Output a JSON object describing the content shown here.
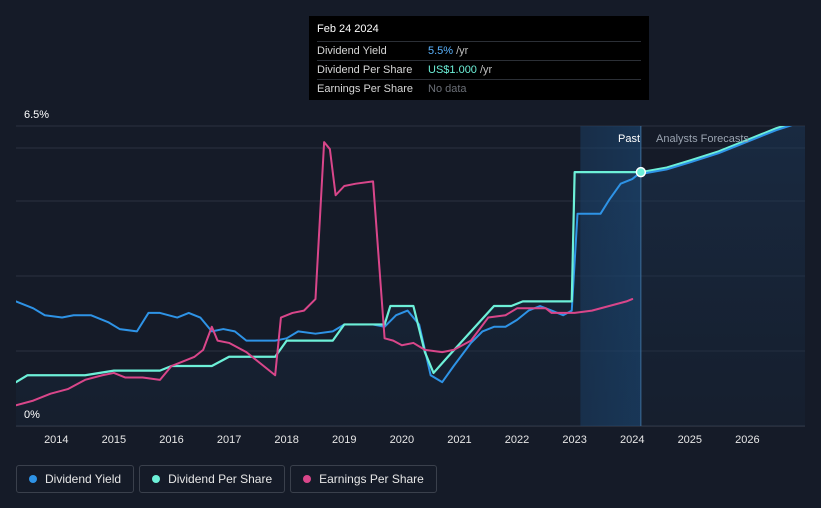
{
  "tooltip": {
    "date": "Feb 24 2024",
    "rows": [
      {
        "label": "Dividend Yield",
        "value": "5.5%",
        "unit": "/yr"
      },
      {
        "label": "Dividend Per Share",
        "value": "US$1.000",
        "unit": "/yr"
      },
      {
        "label": "Earnings Per Share",
        "value": "No data"
      }
    ]
  },
  "legend": [
    {
      "label": "Dividend Yield",
      "color": "#2e93e6"
    },
    {
      "label": "Dividend Per Share",
      "color": "#6df0d8"
    },
    {
      "label": "Earnings Per Share",
      "color": "#d9468a"
    }
  ],
  "chart_data": {
    "type": "line",
    "y_top_label": "6.5%",
    "y_bottom_label": "0%",
    "ylim": [
      0,
      6.5
    ],
    "xlim": [
      2013.3,
      2027.0
    ],
    "x_ticks": [
      "2014",
      "2015",
      "2016",
      "2017",
      "2018",
      "2019",
      "2020",
      "2021",
      "2022",
      "2023",
      "2024",
      "2025",
      "2026"
    ],
    "past_label": "Past",
    "forecast_label": "Analysts Forecasts",
    "past_shade_start": 2023.1,
    "divider_x": 2024.15,
    "marker": {
      "x": 2024.15,
      "y": 5.5
    },
    "series": [
      {
        "name": "Dividend Yield",
        "color": "#2e93e6",
        "points": [
          [
            2013.3,
            2.7
          ],
          [
            2013.6,
            2.55
          ],
          [
            2013.8,
            2.4
          ],
          [
            2014.1,
            2.35
          ],
          [
            2014.3,
            2.4
          ],
          [
            2014.6,
            2.4
          ],
          [
            2014.9,
            2.25
          ],
          [
            2015.1,
            2.1
          ],
          [
            2015.4,
            2.05
          ],
          [
            2015.6,
            2.45
          ],
          [
            2015.8,
            2.45
          ],
          [
            2016.1,
            2.35
          ],
          [
            2016.3,
            2.45
          ],
          [
            2016.5,
            2.35
          ],
          [
            2016.7,
            2.05
          ],
          [
            2016.9,
            2.1
          ],
          [
            2017.1,
            2.05
          ],
          [
            2017.3,
            1.85
          ],
          [
            2017.5,
            1.85
          ],
          [
            2017.8,
            1.85
          ],
          [
            2018.0,
            1.9
          ],
          [
            2018.2,
            2.05
          ],
          [
            2018.5,
            2.0
          ],
          [
            2018.8,
            2.05
          ],
          [
            2019.0,
            2.2
          ],
          [
            2019.2,
            2.2
          ],
          [
            2019.5,
            2.2
          ],
          [
            2019.7,
            2.15
          ],
          [
            2019.9,
            2.4
          ],
          [
            2020.1,
            2.5
          ],
          [
            2020.3,
            2.2
          ],
          [
            2020.5,
            1.1
          ],
          [
            2020.7,
            0.95
          ],
          [
            2020.9,
            1.3
          ],
          [
            2021.2,
            1.8
          ],
          [
            2021.4,
            2.05
          ],
          [
            2021.6,
            2.15
          ],
          [
            2021.8,
            2.15
          ],
          [
            2022.0,
            2.3
          ],
          [
            2022.2,
            2.5
          ],
          [
            2022.4,
            2.6
          ],
          [
            2022.6,
            2.5
          ],
          [
            2022.8,
            2.4
          ],
          [
            2022.95,
            2.5
          ],
          [
            2023.05,
            4.6
          ],
          [
            2023.2,
            4.6
          ],
          [
            2023.45,
            4.6
          ],
          [
            2023.6,
            4.9
          ],
          [
            2023.8,
            5.25
          ],
          [
            2024.0,
            5.35
          ],
          [
            2024.15,
            5.5
          ]
        ]
      },
      {
        "name": "Dividend Per Share",
        "color": "#6df0d8",
        "points": [
          [
            2013.3,
            0.95
          ],
          [
            2013.5,
            1.1
          ],
          [
            2014.0,
            1.1
          ],
          [
            2014.5,
            1.1
          ],
          [
            2015.0,
            1.2
          ],
          [
            2015.5,
            1.2
          ],
          [
            2015.8,
            1.2
          ],
          [
            2016.0,
            1.3
          ],
          [
            2016.5,
            1.3
          ],
          [
            2016.7,
            1.3
          ],
          [
            2017.0,
            1.5
          ],
          [
            2017.5,
            1.5
          ],
          [
            2017.8,
            1.5
          ],
          [
            2018.0,
            1.85
          ],
          [
            2018.5,
            1.85
          ],
          [
            2018.8,
            1.85
          ],
          [
            2019.0,
            2.2
          ],
          [
            2019.5,
            2.2
          ],
          [
            2019.7,
            2.2
          ],
          [
            2019.8,
            2.6
          ],
          [
            2020.1,
            2.6
          ],
          [
            2020.2,
            2.6
          ],
          [
            2020.4,
            1.6
          ],
          [
            2020.55,
            1.15
          ],
          [
            2020.8,
            1.5
          ],
          [
            2021.2,
            2.05
          ],
          [
            2021.6,
            2.6
          ],
          [
            2021.9,
            2.6
          ],
          [
            2022.1,
            2.7
          ],
          [
            2022.5,
            2.7
          ],
          [
            2022.9,
            2.7
          ],
          [
            2022.95,
            2.7
          ],
          [
            2023.0,
            5.5
          ],
          [
            2023.5,
            5.5
          ],
          [
            2024.15,
            5.5
          ],
          [
            2024.6,
            5.6
          ],
          [
            2025.0,
            5.75
          ],
          [
            2025.5,
            5.95
          ],
          [
            2026.0,
            6.2
          ],
          [
            2026.5,
            6.45
          ],
          [
            2027.0,
            6.65
          ]
        ]
      },
      {
        "name": "Earnings Per Share",
        "color": "#d9468a",
        "points": [
          [
            2013.3,
            0.45
          ],
          [
            2013.6,
            0.55
          ],
          [
            2013.9,
            0.7
          ],
          [
            2014.2,
            0.8
          ],
          [
            2014.5,
            1.0
          ],
          [
            2014.8,
            1.1
          ],
          [
            2015.0,
            1.15
          ],
          [
            2015.2,
            1.05
          ],
          [
            2015.5,
            1.05
          ],
          [
            2015.8,
            1.0
          ],
          [
            2016.0,
            1.3
          ],
          [
            2016.2,
            1.4
          ],
          [
            2016.4,
            1.5
          ],
          [
            2016.55,
            1.65
          ],
          [
            2016.7,
            2.15
          ],
          [
            2016.8,
            1.85
          ],
          [
            2017.0,
            1.8
          ],
          [
            2017.3,
            1.6
          ],
          [
            2017.6,
            1.3
          ],
          [
            2017.8,
            1.1
          ],
          [
            2017.9,
            2.35
          ],
          [
            2018.1,
            2.45
          ],
          [
            2018.3,
            2.5
          ],
          [
            2018.5,
            2.75
          ],
          [
            2018.65,
            6.15
          ],
          [
            2018.75,
            6.0
          ],
          [
            2018.85,
            5.0
          ],
          [
            2019.0,
            5.2
          ],
          [
            2019.2,
            5.25
          ],
          [
            2019.5,
            5.3
          ],
          [
            2019.7,
            1.9
          ],
          [
            2019.85,
            1.85
          ],
          [
            2020.0,
            1.75
          ],
          [
            2020.2,
            1.8
          ],
          [
            2020.4,
            1.65
          ],
          [
            2020.7,
            1.6
          ],
          [
            2020.9,
            1.65
          ],
          [
            2021.2,
            1.85
          ],
          [
            2021.5,
            2.35
          ],
          [
            2021.8,
            2.4
          ],
          [
            2022.0,
            2.55
          ],
          [
            2022.3,
            2.55
          ],
          [
            2022.5,
            2.55
          ],
          [
            2022.6,
            2.45
          ],
          [
            2022.8,
            2.45
          ],
          [
            2023.0,
            2.45
          ],
          [
            2023.3,
            2.5
          ],
          [
            2023.6,
            2.6
          ],
          [
            2023.9,
            2.7
          ],
          [
            2024.0,
            2.75
          ]
        ]
      }
    ]
  }
}
